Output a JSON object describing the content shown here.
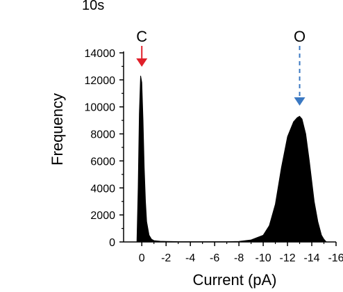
{
  "chart_data": {
    "type": "area",
    "corner_label": "10s",
    "xlabel": "Current (pA)",
    "ylabel": "Frequency",
    "xlim": [
      1.5,
      -16
    ],
    "ylim": [
      0,
      14000
    ],
    "x_ticks": [
      0,
      -2,
      -4,
      -6,
      -8,
      -10,
      -12,
      -14,
      -16
    ],
    "x_tick_labels": [
      "0",
      "-2",
      "-4",
      "-6",
      "-8",
      "-10",
      "-12",
      "-14",
      "-16"
    ],
    "y_ticks": [
      0,
      2000,
      4000,
      6000,
      8000,
      10000,
      12000,
      14000
    ],
    "y_tick_labels": [
      "0",
      "2000",
      "4000",
      "6000",
      "8000",
      "10000",
      "12000",
      "14000"
    ],
    "series": [
      {
        "fill": "#000000",
        "x": [
          0.4,
          0.3,
          0.2,
          0.1,
          0.0,
          -0.1,
          -0.2,
          -0.3,
          -0.4,
          -0.6,
          -0.8,
          -1.0,
          -1.5,
          -2.0,
          -3.0,
          -5.0,
          -7.0,
          -8.0,
          -9.0,
          -10.0,
          -10.5,
          -11.0,
          -11.5,
          -12.0,
          -12.5,
          -12.8,
          -13.0,
          -13.2,
          -13.5,
          -13.8,
          -14.0,
          -14.2,
          -14.5,
          -14.8,
          -15.0,
          -15.2
        ],
        "values": [
          0,
          4000,
          9500,
          12300,
          11800,
          9000,
          5500,
          3000,
          1500,
          500,
          200,
          100,
          50,
          40,
          20,
          20,
          20,
          40,
          150,
          500,
          1200,
          2800,
          5500,
          7800,
          8900,
          9200,
          9300,
          9100,
          8000,
          6000,
          4500,
          3000,
          1500,
          500,
          200,
          0
        ]
      }
    ],
    "annotations": [
      {
        "label": "C",
        "x": 0,
        "arrow_color": "#e0202a",
        "style": "solid"
      },
      {
        "label": "O",
        "x": -13,
        "arrow_color": "#3a78c2",
        "style": "dashed"
      }
    ]
  }
}
